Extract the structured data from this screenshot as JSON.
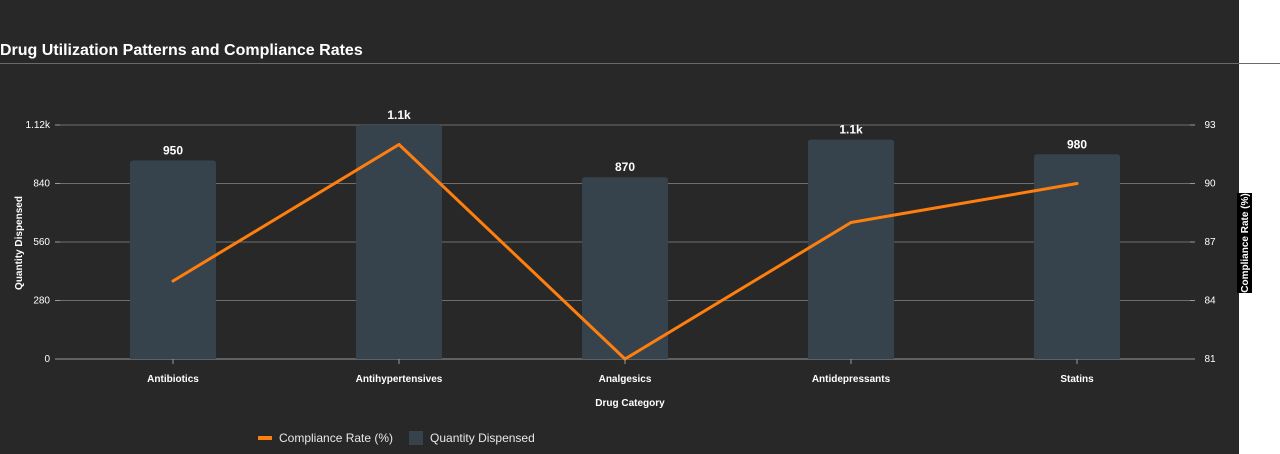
{
  "chart_data": {
    "type": "bar+line",
    "title": "Drug Utilization Patterns and Compliance Rates",
    "xlabel": "Drug Category",
    "ylabel_left": "Quantity Dispensed",
    "ylabel_right": "Compliance Rate (%)",
    "categories": [
      "Antibiotics",
      "Antihypertensives",
      "Analgesics",
      "Antidepressants",
      "Statins"
    ],
    "y_left_lim": [
      0,
      1120
    ],
    "y_left_ticks": [
      "0",
      "280",
      "560",
      "840",
      "1.12k"
    ],
    "y_right_lim": [
      81,
      93
    ],
    "y_right_ticks": [
      "81",
      "84",
      "87",
      "90",
      "93"
    ],
    "series": [
      {
        "name": "Quantity Dispensed",
        "kind": "bar",
        "color": "#37434c",
        "values": [
          950,
          1120,
          870,
          1050,
          980
        ],
        "labels": [
          "950",
          "1.1k",
          "870",
          "1.1k",
          "980"
        ]
      },
      {
        "name": "Compliance Rate (%)",
        "kind": "line",
        "color": "#ff7f0e",
        "values": [
          85,
          92,
          81,
          88,
          90
        ]
      }
    ],
    "legend_position": "bottom-left",
    "grid": true
  }
}
